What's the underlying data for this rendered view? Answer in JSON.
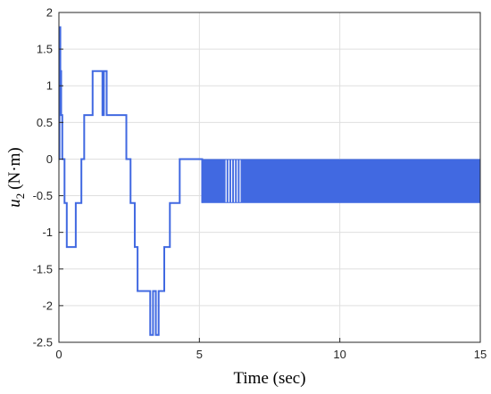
{
  "chart_data": {
    "type": "line",
    "title": "",
    "xlabel": "Time (sec)",
    "ylabel_symbol": "u",
    "ylabel_subscript": "2",
    "ylabel_unit": "(N·m)",
    "xlim": [
      0,
      15
    ],
    "ylim": [
      -2.5,
      2
    ],
    "xticks": [
      0,
      5,
      10,
      15
    ],
    "yticks": [
      -2.5,
      -2,
      -1.5,
      -1,
      -0.5,
      0,
      0.5,
      1,
      1.5,
      2
    ],
    "grid": true,
    "color": "#4169e1",
    "series": [
      {
        "x": [
          0,
          0.02,
          0.02,
          0.05,
          0.05,
          0.08,
          0.08,
          0.12,
          0.12,
          0.2,
          0.2,
          0.28,
          0.28,
          0.6,
          0.6,
          0.8,
          0.8,
          0.9,
          0.9,
          1.2,
          1.2,
          1.55,
          1.55,
          1.6,
          1.6,
          1.7,
          1.7,
          1.95,
          1.95,
          2.05,
          2.05,
          2.4,
          2.4,
          2.55,
          2.55,
          2.7,
          2.7,
          2.8,
          2.8,
          3.25,
          3.25,
          3.35,
          3.35,
          3.45,
          3.45,
          3.55,
          3.55,
          3.75,
          3.75,
          3.95,
          3.95,
          4.3,
          4.3,
          4.45,
          4.45,
          5.1,
          5.1
        ],
        "y": [
          0,
          0,
          1.8,
          1.8,
          1.2,
          1.2,
          0.6,
          0.6,
          0,
          0,
          -0.6,
          -0.6,
          -1.2,
          -1.2,
          -0.6,
          -0.6,
          0,
          0,
          0.6,
          0.6,
          1.2,
          1.2,
          0.6,
          0.6,
          1.2,
          1.2,
          0.6,
          0.6,
          0.6,
          0.6,
          0.6,
          0.6,
          0,
          0,
          -0.6,
          -0.6,
          -1.2,
          -1.2,
          -1.8,
          -1.8,
          -2.4,
          -2.4,
          -1.8,
          -1.8,
          -2.4,
          -2.4,
          -1.8,
          -1.8,
          -1.2,
          -1.2,
          -0.6,
          -0.6,
          0,
          0,
          0,
          0,
          -0.6
        ]
      }
    ],
    "chatter": {
      "x_start": 5.1,
      "x_end": 15,
      "y_high": 0,
      "y_low": -0.6,
      "gap_x": [
        5.95,
        6.05,
        6.15,
        6.25,
        6.35,
        6.45
      ]
    }
  }
}
